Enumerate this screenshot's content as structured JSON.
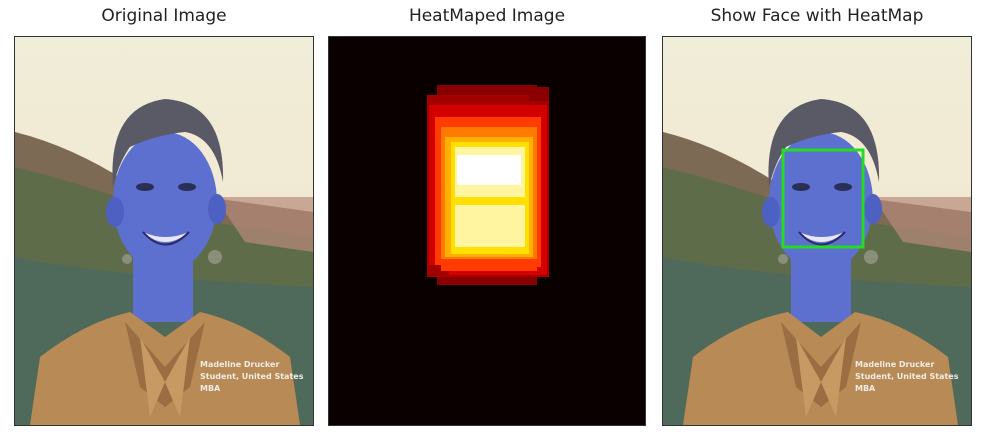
{
  "panels": [
    {
      "title": "Original Image"
    },
    {
      "title": "HeatMaped Image"
    },
    {
      "title": "Show Face with HeatMap"
    }
  ],
  "photo_caption": {
    "line1": "Madeline Drucker",
    "line2": "Student, United States",
    "line3": "MBA"
  },
  "colors": {
    "skin": "#5d6fcf",
    "hair": "#5a5a66",
    "sweater": "#b88a55",
    "sky": "#f2ead8",
    "hills": "#6a7450",
    "heat_background": "#0a0000",
    "face_box": "#22dd22"
  }
}
